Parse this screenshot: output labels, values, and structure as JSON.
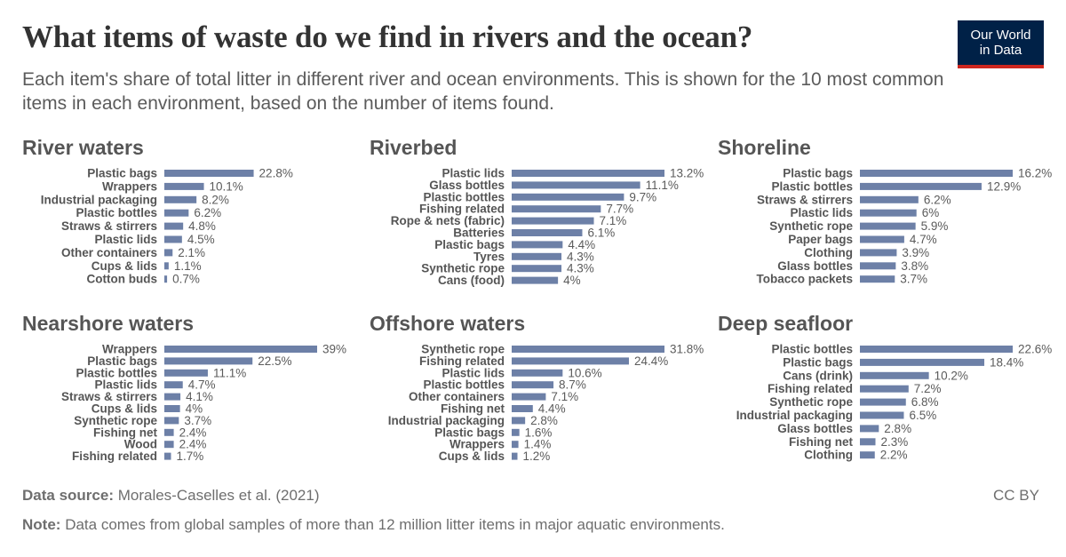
{
  "title": "What items of waste do we find in rivers and the ocean?",
  "subtitle": "Each item's share of total litter in different river and ocean environments. This is shown for the 10 most common items in each environment, based on the number of items found.",
  "logo": {
    "line1": "Our World",
    "line2": "in Data"
  },
  "colors": {
    "bar": "#6d80a7",
    "brand": "#002147",
    "brand_accent": "#ce261e"
  },
  "source": {
    "label": "Data source:",
    "text": "Morales-Caselles et al. (2021)"
  },
  "note": {
    "label": "Note:",
    "text": "Data comes from global samples of more than 12 million litter items in major aquatic environments."
  },
  "license": "CC BY",
  "chart_data": [
    {
      "type": "bar",
      "orientation": "horizontal",
      "title": "River waters",
      "categories": [
        "Plastic bags",
        "Wrappers",
        "Industrial packaging",
        "Plastic bottles",
        "Straws & stirrers",
        "Plastic lids",
        "Other containers",
        "Cups & lids",
        "Cotton buds"
      ],
      "values": [
        22.8,
        10.1,
        8.2,
        6.2,
        4.8,
        4.5,
        2.1,
        1.1,
        0.7
      ],
      "labels": [
        "22.8%",
        "10.1%",
        "8.2%",
        "6.2%",
        "4.8%",
        "4.5%",
        "2.1%",
        "1.1%",
        "0.7%"
      ],
      "xlim": [
        0,
        39
      ]
    },
    {
      "type": "bar",
      "orientation": "horizontal",
      "title": "Riverbed",
      "categories": [
        "Plastic lids",
        "Glass bottles",
        "Plastic bottles",
        "Fishing related",
        "Rope & nets (fabric)",
        "Batteries",
        "Plastic bags",
        "Tyres",
        "Synthetic rope",
        "Cans (food)"
      ],
      "values": [
        13.2,
        11.1,
        9.7,
        7.7,
        7.1,
        6.1,
        4.4,
        4.3,
        4.3,
        4
      ],
      "labels": [
        "13.2%",
        "11.1%",
        "9.7%",
        "7.7%",
        "7.1%",
        "6.1%",
        "4.4%",
        "4.3%",
        "4.3%",
        "4%"
      ],
      "xlim": [
        0,
        13.2
      ]
    },
    {
      "type": "bar",
      "orientation": "horizontal",
      "title": "Shoreline",
      "categories": [
        "Plastic bags",
        "Plastic bottles",
        "Straws & stirrers",
        "Plastic lids",
        "Synthetic rope",
        "Paper bags",
        "Clothing",
        "Glass bottles",
        "Tobacco packets"
      ],
      "values": [
        16.2,
        12.9,
        6.2,
        6,
        5.9,
        4.7,
        3.9,
        3.8,
        3.7
      ],
      "labels": [
        "16.2%",
        "12.9%",
        "6.2%",
        "6%",
        "5.9%",
        "4.7%",
        "3.9%",
        "3.8%",
        "3.7%"
      ],
      "xlim": [
        0,
        16.2
      ]
    },
    {
      "type": "bar",
      "orientation": "horizontal",
      "title": "Nearshore waters",
      "categories": [
        "Wrappers",
        "Plastic bags",
        "Plastic bottles",
        "Plastic lids",
        "Straws & stirrers",
        "Cups & lids",
        "Synthetic rope",
        "Fishing net",
        "Wood",
        "Fishing related"
      ],
      "values": [
        39,
        22.5,
        11.1,
        4.7,
        4.1,
        4,
        3.7,
        2.4,
        2.4,
        1.7
      ],
      "labels": [
        "39%",
        "22.5%",
        "11.1%",
        "4.7%",
        "4.1%",
        "4%",
        "3.7%",
        "2.4%",
        "2.4%",
        "1.7%"
      ],
      "xlim": [
        0,
        39
      ]
    },
    {
      "type": "bar",
      "orientation": "horizontal",
      "title": "Offshore waters",
      "categories": [
        "Synthetic rope",
        "Fishing related",
        "Plastic lids",
        "Plastic bottles",
        "Other containers",
        "Fishing net",
        "Industrial packaging",
        "Plastic bags",
        "Wrappers",
        "Cups & lids"
      ],
      "values": [
        31.8,
        24.4,
        10.6,
        8.7,
        7.1,
        4.4,
        2.8,
        1.6,
        1.4,
        1.2
      ],
      "labels": [
        "31.8%",
        "24.4%",
        "10.6%",
        "8.7%",
        "7.1%",
        "4.4%",
        "2.8%",
        "1.6%",
        "1.4%",
        "1.2%"
      ],
      "xlim": [
        0,
        31.8
      ]
    },
    {
      "type": "bar",
      "orientation": "horizontal",
      "title": "Deep seafloor",
      "categories": [
        "Plastic bottles",
        "Plastic bags",
        "Cans (drink)",
        "Fishing related",
        "Synthetic rope",
        "Industrial packaging",
        "Glass bottles",
        "Fishing net",
        "Clothing"
      ],
      "values": [
        22.6,
        18.4,
        10.2,
        7.2,
        6.8,
        6.5,
        2.8,
        2.3,
        2.2
      ],
      "labels": [
        "22.6%",
        "18.4%",
        "10.2%",
        "7.2%",
        "6.8%",
        "6.5%",
        "2.8%",
        "2.3%",
        "2.2%"
      ],
      "xlim": [
        0,
        22.6
      ]
    }
  ]
}
